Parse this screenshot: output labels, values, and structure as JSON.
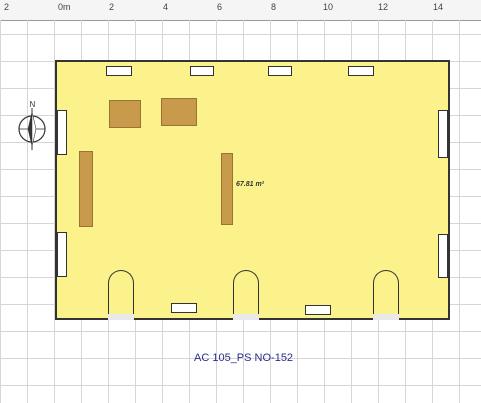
{
  "ruler": {
    "labels": [
      "2",
      "0m",
      "2",
      "4",
      "6",
      "8",
      "10",
      "12",
      "14"
    ]
  },
  "plan": {
    "area_label": "67.81 m²",
    "room_code": "AC 105_PS NO-152",
    "compass_label": "N",
    "colors": {
      "room_fill": "#fbf28c",
      "furniture": "#c89a4c",
      "wall": "#333333",
      "grid": "#d6d6d6",
      "room_code": "#2a2d8a"
    }
  },
  "icons": {
    "compass": "north-arrow-icon",
    "door": "door-swing-icon",
    "window": "window-icon"
  }
}
